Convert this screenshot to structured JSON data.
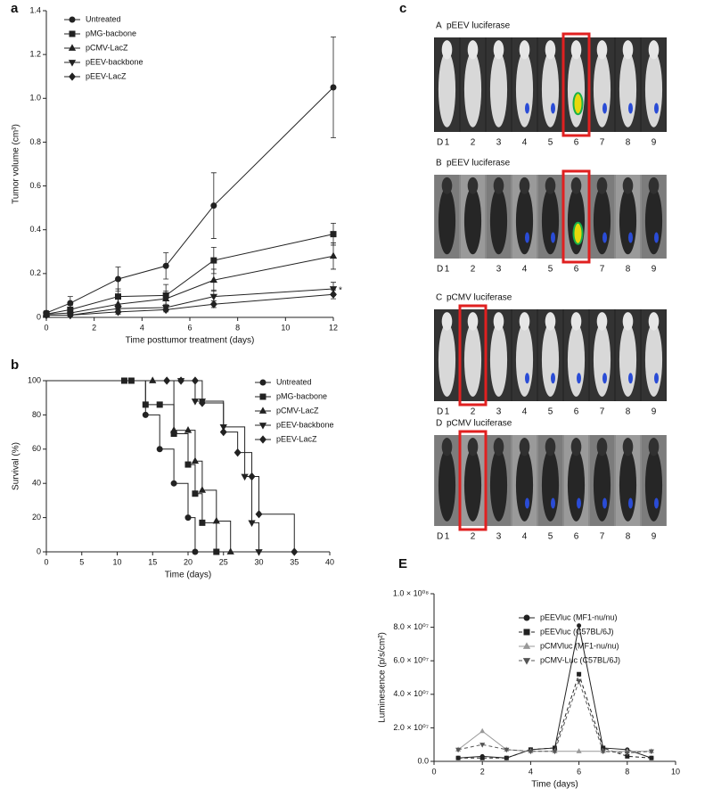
{
  "chart_data": [
    {
      "type": "line",
      "panel": "a",
      "x_label": "Time posttumor treatment (days)",
      "y_label": "Tumor volume (cm³)",
      "x": [
        0,
        1,
        3,
        5,
        7,
        12
      ],
      "xlim": [
        0,
        12
      ],
      "xticks": [
        0,
        2,
        4,
        6,
        8,
        10,
        12
      ],
      "ylim": [
        0,
        1.4
      ],
      "yticks": [
        0,
        0.2,
        0.4,
        0.6,
        0.8,
        {
          "value": 1,
          "label": "1.0"
        },
        1.2,
        1.4
      ],
      "annotation": "*",
      "series": [
        {
          "name": "Untreated",
          "color": "#222222",
          "marker": "circle",
          "values": [
            0.02,
            0.065,
            0.175,
            0.235,
            0.51,
            1.05
          ],
          "errors": [
            0.01,
            0.03,
            0.055,
            0.06,
            0.15,
            0.23
          ]
        },
        {
          "name": "pMG-bacbone",
          "color": "#222222",
          "marker": "square",
          "values": [
            0.015,
            0.035,
            0.095,
            0.1,
            0.26,
            0.38
          ],
          "errors": [
            0.005,
            0.02,
            0.035,
            0.05,
            0.06,
            0.05
          ]
        },
        {
          "name": "pCMV-LacZ",
          "color": "#222222",
          "marker": "triangle-up",
          "values": [
            0.015,
            0.02,
            0.06,
            0.085,
            0.17,
            0.28
          ],
          "errors": [
            0.005,
            0.01,
            0.03,
            0.035,
            0.05,
            0.06
          ]
        },
        {
          "name": "pEEV-backbone",
          "color": "#222222",
          "marker": "triangle-down",
          "values": [
            0.01,
            0.01,
            0.04,
            0.045,
            0.095,
            0.13
          ],
          "errors": [
            0.005,
            0.01,
            0.015,
            0.015,
            0.03,
            0.03
          ]
        },
        {
          "name": "pEEV-LacZ",
          "color": "#222222",
          "marker": "diamond",
          "values": [
            0.01,
            0.01,
            0.025,
            0.035,
            0.06,
            0.105
          ],
          "errors": [
            0.005,
            0.005,
            0.01,
            0.01,
            0.015,
            0.02
          ]
        }
      ]
    },
    {
      "type": "step",
      "panel": "b",
      "x_label": "Time (days)",
      "y_label": "Survival (%)",
      "xlim": [
        0,
        40
      ],
      "xticks": [
        0,
        5,
        10,
        15,
        20,
        25,
        30,
        35,
        40
      ],
      "ylim": [
        0,
        100
      ],
      "yticks": [
        0,
        20,
        40,
        60,
        80,
        100
      ],
      "series": [
        {
          "name": "Untreated",
          "color": "#222222",
          "marker": "circle",
          "x": [
            11,
            14,
            16,
            18,
            20,
            21
          ],
          "values": [
            100,
            80,
            60,
            40,
            20,
            0
          ]
        },
        {
          "name": "pMG-bacbone",
          "color": "#222222",
          "marker": "square",
          "x": [
            11,
            12,
            14,
            16,
            18,
            20,
            21,
            22,
            24
          ],
          "values": [
            100,
            100,
            86,
            86,
            69,
            51,
            34,
            17,
            0
          ]
        },
        {
          "name": "pCMV-LacZ",
          "color": "#222222",
          "marker": "triangle-up",
          "x": [
            15,
            18,
            20,
            21,
            22,
            24,
            26
          ],
          "values": [
            100,
            71,
            71,
            53,
            36,
            18,
            0
          ]
        },
        {
          "name": "pEEV-backbone",
          "color": "#222222",
          "marker": "triangle-down",
          "x": [
            19,
            21,
            22,
            25,
            28,
            29,
            30
          ],
          "values": [
            100,
            88,
            88,
            73,
            44,
            17,
            0
          ]
        },
        {
          "name": "pEEV-LacZ",
          "color": "#222222",
          "marker": "diamond",
          "x": [
            17,
            19,
            21,
            22,
            25,
            27,
            29,
            30,
            35
          ],
          "values": [
            100,
            100,
            100,
            87,
            70,
            58,
            44,
            22,
            0
          ]
        }
      ]
    },
    {
      "type": "line",
      "panel": "E",
      "x_label": "Time (days)",
      "y_label": "Luminesence (p/s/cm²)",
      "x": [
        1,
        2,
        3,
        4,
        5,
        6,
        7,
        8,
        9
      ],
      "xlim": [
        0,
        10
      ],
      "xticks": [
        0,
        2,
        4,
        6,
        8,
        10
      ],
      "ylim": [
        0,
        100000000
      ],
      "yticks": [
        {
          "value": 0,
          "label": "0.0"
        },
        {
          "value": 20000000,
          "label": "2.0 × 10⁰⁷"
        },
        {
          "value": 40000000,
          "label": "4.0 × 10⁰⁷"
        },
        {
          "value": 60000000,
          "label": "6.0 × 10⁰⁷"
        },
        {
          "value": 80000000,
          "label": "8.0 × 10⁰⁷"
        },
        {
          "value": 100000000,
          "label": "1.0 × 10⁰⁸"
        }
      ],
      "series": [
        {
          "name": "pEEVluc (MF1-nu/nu)",
          "color": "#222222",
          "marker": "circle",
          "line_style": "solid",
          "values": [
            2000000,
            3000000,
            2000000,
            7000000,
            8000000,
            81000000,
            8000000,
            7000000,
            2000000
          ]
        },
        {
          "name": "pEEVluc (C57BL/6J)",
          "color": "#222222",
          "marker": "square",
          "line_style": "dashed",
          "values": [
            2000000,
            2000000,
            2000000,
            7000000,
            8000000,
            52000000,
            8000000,
            3000000,
            2000000
          ]
        },
        {
          "name": "pCMVluc (MF1-nu/nu)",
          "color": "#999999",
          "marker": "triangle-up",
          "line_style": "solid",
          "values": [
            7000000,
            18000000,
            7000000,
            6000000,
            6000000,
            6000000,
            6000000,
            6000000,
            6000000
          ]
        },
        {
          "name": "pCMV-Luc (C57BL/6J)",
          "color": "#555555",
          "marker": "triangle-down",
          "line_style": "dashed",
          "values": [
            7000000,
            10000000,
            7000000,
            6000000,
            6000000,
            48000000,
            6000000,
            5000000,
            6000000
          ]
        }
      ]
    }
  ],
  "image_panel": {
    "panel": "c",
    "day_label": "D",
    "days": [
      1,
      2,
      3,
      4,
      5,
      6,
      7,
      8,
      9
    ],
    "rows": [
      {
        "letter": "A",
        "title": "pEEV luciferase"
      },
      {
        "letter": "B",
        "title": "pEEV luciferase"
      },
      {
        "letter": "C",
        "title": "pCMV luciferase"
      },
      {
        "letter": "D",
        "title": "pCMV luciferase"
      }
    ]
  }
}
